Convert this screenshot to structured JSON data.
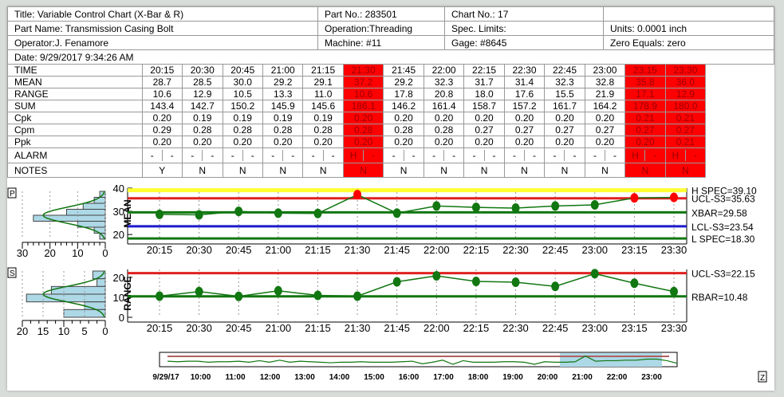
{
  "header": {
    "title": "Title: Variable Control Chart (X-Bar & R)",
    "part_no": "Part No.: 283501",
    "chart_no": "Chart No.: 17",
    "part_name": "Part Name: Transmission Casing Bolt",
    "operation": "Operation:Threading",
    "spec_limits": "Spec. Limits:",
    "units": "Units: 0.0001 inch",
    "operator": "Operator:J. Fenamore",
    "machine": "Machine: #11",
    "gage": "Gage: #8645",
    "zero_equals": "Zero Equals: zero",
    "date": "Date: 9/29/2017 9:34:26 AM"
  },
  "table": {
    "row_labels": [
      "TIME",
      "MEAN",
      "RANGE",
      "SUM",
      "Cpk",
      "Cpm",
      "Ppk",
      "ALARM",
      "NOTES"
    ],
    "alarm_columns": [
      5,
      12,
      13
    ],
    "columns": [
      {
        "time": "20:15",
        "mean": "28.7",
        "range": "10.6",
        "sum": "143.4",
        "cpk": "0.20",
        "cpm": "0.29",
        "ppk": "0.20",
        "alarm": [
          "-",
          "-"
        ],
        "notes": "Y"
      },
      {
        "time": "20:30",
        "mean": "28.5",
        "range": "12.9",
        "sum": "142.7",
        "cpk": "0.19",
        "cpm": "0.28",
        "ppk": "0.20",
        "alarm": [
          "-",
          "-"
        ],
        "notes": "N"
      },
      {
        "time": "20:45",
        "mean": "30.0",
        "range": "10.5",
        "sum": "150.2",
        "cpk": "0.19",
        "cpm": "0.28",
        "ppk": "0.20",
        "alarm": [
          "-",
          "-"
        ],
        "notes": "N"
      },
      {
        "time": "21:00",
        "mean": "29.2",
        "range": "13.3",
        "sum": "145.9",
        "cpk": "0.19",
        "cpm": "0.28",
        "ppk": "0.20",
        "alarm": [
          "-",
          "-"
        ],
        "notes": "N"
      },
      {
        "time": "21:15",
        "mean": "29.1",
        "range": "11.0",
        "sum": "145.6",
        "cpk": "0.19",
        "cpm": "0.28",
        "ppk": "0.20",
        "alarm": [
          "-",
          "-"
        ],
        "notes": "N"
      },
      {
        "time": "21:30",
        "mean": "37.2",
        "range": "10.6",
        "sum": "186.1",
        "cpk": "0.20",
        "cpm": "0.28",
        "ppk": "0.20",
        "alarm": [
          "H",
          "-"
        ],
        "notes": "N"
      },
      {
        "time": "21:45",
        "mean": "29.2",
        "range": "17.8",
        "sum": "146.2",
        "cpk": "0.20",
        "cpm": "0.28",
        "ppk": "0.20",
        "alarm": [
          "-",
          "-"
        ],
        "notes": "N"
      },
      {
        "time": "22:00",
        "mean": "32.3",
        "range": "20.8",
        "sum": "161.4",
        "cpk": "0.20",
        "cpm": "0.28",
        "ppk": "0.20",
        "alarm": [
          "-",
          "-"
        ],
        "notes": "N"
      },
      {
        "time": "22:15",
        "mean": "31.7",
        "range": "18.0",
        "sum": "158.7",
        "cpk": "0.20",
        "cpm": "0.27",
        "ppk": "0.20",
        "alarm": [
          "-",
          "-"
        ],
        "notes": "N"
      },
      {
        "time": "22:30",
        "mean": "31.4",
        "range": "17.6",
        "sum": "157.2",
        "cpk": "0.20",
        "cpm": "0.27",
        "ppk": "0.20",
        "alarm": [
          "-",
          "-"
        ],
        "notes": "N"
      },
      {
        "time": "22:45",
        "mean": "32.3",
        "range": "15.5",
        "sum": "161.7",
        "cpk": "0.20",
        "cpm": "0.27",
        "ppk": "0.20",
        "alarm": [
          "-",
          "-"
        ],
        "notes": "N"
      },
      {
        "time": "23:00",
        "mean": "32.8",
        "range": "21.9",
        "sum": "164.2",
        "cpk": "0.20",
        "cpm": "0.27",
        "ppk": "0.20",
        "alarm": [
          "-",
          "-"
        ],
        "notes": "N"
      },
      {
        "time": "23:15",
        "mean": "35.8",
        "range": "17.1",
        "sum": "178.9",
        "cpk": "0.21",
        "cpm": "0.27",
        "ppk": "0.20",
        "alarm": [
          "H",
          "-"
        ],
        "notes": "N"
      },
      {
        "time": "23:30",
        "mean": "36.0",
        "range": "12.9",
        "sum": "180.0",
        "cpk": "0.21",
        "cpm": "0.27",
        "ppk": "0.21",
        "alarm": [
          "H",
          "-"
        ],
        "notes": "N"
      }
    ]
  },
  "colors": {
    "alarm": "#ff0000",
    "spec": "#ffff33",
    "ucl": "#e02020",
    "center": "#117711",
    "lcl": "#1a1acc",
    "hist": "#add8e6"
  },
  "chart_data": [
    {
      "type": "line",
      "ylabel": "MEAN",
      "ylim": [
        18,
        40
      ],
      "yticks": [
        "40",
        "30",
        "20"
      ],
      "x": [
        "20:15",
        "20:30",
        "20:45",
        "21:00",
        "21:15",
        "21:30",
        "21:45",
        "22:00",
        "22:15",
        "22:30",
        "22:45",
        "23:00",
        "23:15",
        "23:30"
      ],
      "values": [
        28.7,
        28.5,
        30.0,
        29.2,
        29.1,
        37.2,
        29.2,
        32.3,
        31.7,
        31.4,
        32.3,
        32.8,
        35.8,
        36.0
      ],
      "out_of_control": [
        5,
        12,
        13
      ],
      "lines": [
        {
          "label": "H SPEC=39.10",
          "value": 39.1,
          "kind": "spec"
        },
        {
          "label": "UCL-S3=35.63",
          "value": 35.63,
          "kind": "ucl"
        },
        {
          "label": "XBAR=29.58",
          "value": 29.58,
          "kind": "center"
        },
        {
          "label": "LCL-S3=23.54",
          "value": 23.54,
          "kind": "lcl"
        },
        {
          "label": "L SPEC=18.30",
          "value": 18.3,
          "kind": "center"
        }
      ],
      "histogram": {
        "marker": "P",
        "xticks": [
          "30",
          "20",
          "10",
          "0"
        ],
        "xlim": [
          30,
          0
        ],
        "counts": [
          2,
          4,
          8,
          14,
          26,
          10,
          4,
          2
        ]
      }
    },
    {
      "type": "line",
      "ylabel": "RANGE",
      "ylim": [
        0,
        24
      ],
      "yticks": [
        "20",
        "10",
        "0"
      ],
      "x": [
        "20:15",
        "20:30",
        "20:45",
        "21:00",
        "21:15",
        "21:30",
        "21:45",
        "22:00",
        "22:15",
        "22:30",
        "22:45",
        "23:00",
        "23:15",
        "23:30"
      ],
      "values": [
        10.6,
        12.9,
        10.5,
        13.3,
        11.0,
        10.6,
        17.8,
        20.8,
        18.0,
        17.6,
        15.5,
        21.9,
        17.1,
        12.9
      ],
      "out_of_control": [],
      "lines": [
        {
          "label": "UCL-S3=22.15",
          "value": 22.15,
          "kind": "ucl"
        },
        {
          "label": "RBAR=10.48",
          "value": 10.48,
          "kind": "center"
        }
      ],
      "histogram": {
        "marker": "S",
        "xticks": [
          "20",
          "15",
          "10",
          "5",
          "0"
        ],
        "xlim": [
          20,
          0
        ],
        "counts": [
          3,
          2,
          13,
          19,
          5,
          10
        ]
      }
    }
  ],
  "overview": {
    "labels": [
      "9/29/17",
      "10:00",
      "11:00",
      "12:00",
      "13:00",
      "14:00",
      "15:00",
      "16:00",
      "17:00",
      "18:00",
      "19:00",
      "20:00",
      "21:00",
      "22:00",
      "23:00"
    ],
    "values": [
      3,
      2.5,
      3,
      3,
      2,
      2.5,
      2.5,
      3,
      2,
      3.5,
      2,
      4,
      2,
      3,
      2.5,
      2,
      1.5,
      2,
      2,
      2.5,
      2,
      2,
      2,
      2.5,
      3,
      0.5,
      2,
      4,
      0,
      3.5,
      2,
      2,
      2,
      2.5,
      2.5,
      2,
      0,
      2.5,
      2,
      2,
      2.5,
      8,
      3,
      3.5,
      3.5,
      4,
      4,
      5,
      5,
      3.5,
      1
    ],
    "zoom_button": "Z"
  }
}
